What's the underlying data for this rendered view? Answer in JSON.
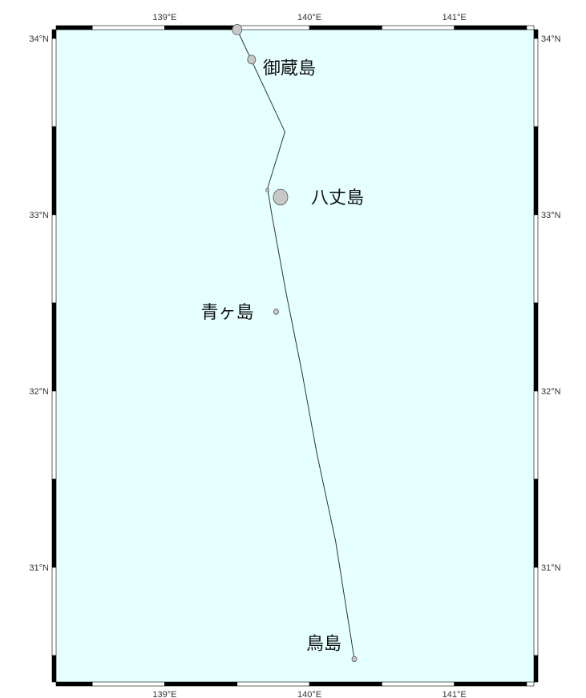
{
  "map": {
    "ocean_color": "#e6ffff",
    "land_color": "#c8c8c8",
    "frame_color": "#000000",
    "track_color": "#333333",
    "extent": {
      "lon_min": 138.25,
      "lon_max": 141.55,
      "lat_min": 30.35,
      "lat_max": 34.05
    },
    "frame_lon_ticks": [
      138.5,
      139,
      139.5,
      140,
      140.5,
      141,
      141.5
    ],
    "frame_lat_ticks": [
      30.5,
      31,
      31.5,
      32,
      32.5,
      33,
      33.5,
      34
    ],
    "lon_labels": [
      {
        "lon": 139,
        "text": "139°E"
      },
      {
        "lon": 140,
        "text": "140°E"
      },
      {
        "lon": 141,
        "text": "141°E"
      }
    ],
    "lat_labels": [
      {
        "lat": 34,
        "text": "34°N"
      },
      {
        "lat": 33,
        "text": "33°N"
      },
      {
        "lat": 32,
        "text": "32°N"
      },
      {
        "lat": 31,
        "text": "31°N"
      }
    ],
    "islands": [
      {
        "id": "mikurajima",
        "name": "御蔵島",
        "lon": 139.6,
        "lat": 33.88,
        "size": 5,
        "label_dx": 14,
        "label_dy": 10
      },
      {
        "id": "hachijojima",
        "name": "八丈島",
        "lon": 139.8,
        "lat": 33.1,
        "size": 9,
        "label_dx": 38,
        "label_dy": 0
      },
      {
        "id": "aogashima",
        "name": "青ヶ島",
        "lon": 139.77,
        "lat": 32.45,
        "size": 3,
        "label_dx": -94,
        "label_dy": 0
      },
      {
        "id": "torishima",
        "name": "鳥島",
        "lon": 140.31,
        "lat": 30.48,
        "size": 3,
        "label_dx": -60,
        "label_dy": -20
      },
      {
        "id": "kozushima-area",
        "name": "",
        "lon": 139.5,
        "lat": 34.05,
        "size": 6,
        "label_dx": 0,
        "label_dy": 0
      },
      {
        "id": "hachijo-kojima",
        "name": "",
        "lon": 139.71,
        "lat": 33.14,
        "size": 2,
        "label_dx": 0,
        "label_dy": 0
      }
    ],
    "track": [
      [
        139.5,
        34.05
      ],
      [
        139.83,
        33.47
      ],
      [
        139.71,
        33.15
      ],
      [
        139.74,
        33.0
      ],
      [
        139.84,
        32.55
      ],
      [
        139.95,
        32.1
      ],
      [
        140.05,
        31.65
      ],
      [
        140.18,
        31.15
      ],
      [
        140.31,
        30.48
      ]
    ]
  }
}
